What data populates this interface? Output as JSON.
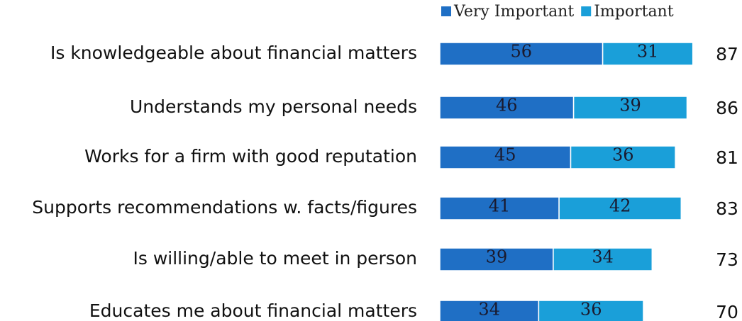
{
  "chart_data": {
    "type": "stacked-bar-horizontal",
    "categories": [
      "Is knowledgeable about financial matters",
      "Understands my personal needs",
      "Works for a firm with good reputation",
      "Supports recommendations w. facts/figures",
      "Is willing/able to meet in person",
      "Educates me about financial matters"
    ],
    "series": [
      {
        "name": "Very Important",
        "color": "#1f6fc5",
        "values": [
          56,
          46,
          45,
          41,
          39,
          34
        ]
      },
      {
        "name": "Important",
        "color": "#1a9fd9",
        "values": [
          31,
          39,
          36,
          42,
          34,
          36
        ]
      }
    ],
    "totals": [
      87,
      86,
      81,
      83,
      73,
      70
    ]
  }
}
